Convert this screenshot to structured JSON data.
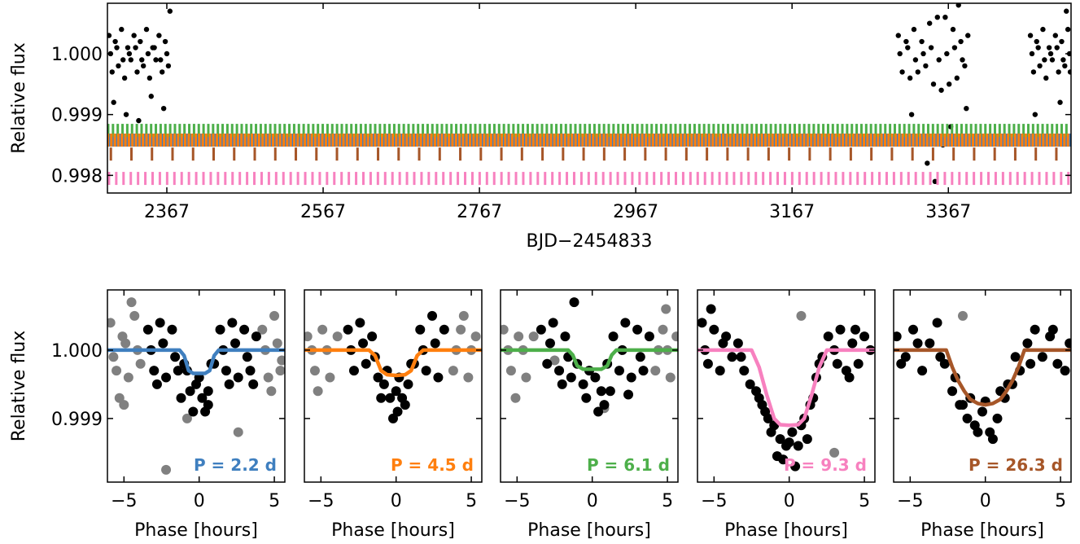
{
  "chart_data": [
    {
      "type": "scatter",
      "xlabel": "BJD−2454833",
      "ylabel": "Relative flux",
      "color": "#000000",
      "xlim": [
        2291,
        3524
      ],
      "ylim": [
        0.99771,
        1.00083
      ],
      "xticks": [
        2367,
        2567,
        2767,
        2967,
        3167,
        3367
      ],
      "yticks": [
        {
          "value": 1,
          "label": "1.000"
        },
        {
          "value": 0.999,
          "label": "0.999"
        },
        {
          "value": 0.998,
          "label": "0.998"
        }
      ],
      "x": [
        2293,
        2297,
        2301,
        2305,
        2309,
        2313,
        2317,
        2321,
        2325,
        2329,
        2333,
        2337,
        2341,
        2345,
        2349,
        2353,
        2357,
        2361,
        2365,
        2369,
        2295,
        2303,
        2311,
        2319,
        2327,
        2335,
        2343,
        2351,
        2359,
        2367,
        2299,
        2315,
        2331,
        2347,
        2363,
        2371,
        3303,
        3308,
        3313,
        3318,
        3323,
        3328,
        3333,
        3338,
        3343,
        3348,
        3353,
        3358,
        3363,
        3368,
        3373,
        3378,
        3383,
        3388,
        3392,
        3305,
        3315,
        3325,
        3335,
        3345,
        3355,
        3365,
        3375,
        3385,
        3310,
        3320,
        3340,
        3350,
        3360,
        3370,
        3380,
        3390,
        3472,
        3476,
        3480,
        3484,
        3488,
        3492,
        3496,
        3500,
        3504,
        3508,
        3512,
        3516,
        3520,
        3523,
        3474,
        3482,
        3490,
        3498,
        3506,
        3514,
        3522,
        3478,
        3494,
        3510,
        3518
      ],
      "values": [
        1.0003,
        0.9997,
        1.0002,
        0.9998,
        1.0004,
        0.9996,
        1.0001,
        0.9999,
        1.0003,
        0.9997,
        1.0002,
        0.9998,
        1.0004,
        0.9996,
        1.0001,
        0.9999,
        1.0003,
        0.9997,
        1.0002,
        0.9998,
        1.0,
        1.0001,
        0.9999,
        1.0,
        1.0001,
        0.9999,
        1.0,
        1.0001,
        0.9999,
        1.0,
        0.9992,
        0.999,
        0.9989,
        0.9993,
        0.9991,
        1.0007,
        1.0003,
        0.9997,
        1.0002,
        0.9996,
        1.0004,
        0.9997,
        1.0002,
        0.9998,
        1.0005,
        0.9995,
        1.0006,
        0.9994,
        1.0006,
        0.9995,
        1.0004,
        0.9996,
        1.0002,
        0.9998,
        1.0003,
        1.0,
        1.0001,
        0.9999,
        1.0,
        1.0001,
        0.9999,
        1.0,
        1.0001,
        0.9999,
        0.9986,
        0.999,
        0.9982,
        0.9979,
        0.9985,
        0.9988,
        1.0008,
        0.9991,
        1.0003,
        0.9997,
        1.0002,
        0.9998,
        1.0004,
        0.9996,
        1.0001,
        0.9999,
        1.0003,
        0.9997,
        1.0002,
        0.9998,
        1.0004,
        0.9997,
        1.0,
        1.0001,
        0.9999,
        1.0,
        1.0001,
        0.9999,
        1.0,
        0.999,
        0.9986,
        0.9992,
        1.0007
      ],
      "transits": [
        {
          "color": "#3f7fbf",
          "y": 0.99858,
          "t0": 2292,
          "period": 2.2
        },
        {
          "color": "#4daf4a",
          "y": 0.99874,
          "t0": 2292,
          "period": 6.1
        },
        {
          "color": "#ff7f0e",
          "y": 0.99858,
          "t0": 2291.5,
          "period": 4.5
        },
        {
          "color": "#a65628",
          "y": 0.99835,
          "t0": 2295.4,
          "period": 26.3
        },
        {
          "color": "#f781bf",
          "y": 0.99795,
          "t0": 2293,
          "period": 9.3
        }
      ]
    },
    {
      "type": "phase",
      "xlabel": "Phase [hours]",
      "ylabel": "Relative flux",
      "annotation": "P = 2.2 d",
      "xlim": [
        -6.1,
        5.7
      ],
      "ylim": [
        0.99807,
        1.00088
      ],
      "ytick_labels": true,
      "xticks": [
        {
          "value": -5,
          "label": "−5"
        },
        0,
        5
      ],
      "yticks": [
        {
          "value": 1,
          "label": "1.000"
        },
        {
          "value": 0.999,
          "label": "0.999"
        }
      ],
      "series": [
        {
          "color": "#808080",
          "x": [
            -5.9,
            -5.5,
            -5.1,
            -4.7,
            -4.3,
            -3.9,
            4.2,
            4.6,
            5.0,
            5.4,
            -5.7,
            -4.9,
            -4.1,
            4.4,
            5.2,
            -5.3,
            4.8,
            -4.5,
            -0.8,
            2.6,
            -2.2,
            -5.0,
            5.5
          ],
          "values": [
            1.0004,
            0.9997,
            1.0002,
            0.9996,
            1.0005,
            0.9998,
            1.0003,
            0.9996,
            1.0005,
            0.9997,
            0.9999,
            1.0001,
            1.0,
            1.0,
            1.0001,
            0.9993,
            0.9994,
            1.0007,
            0.999,
            0.9988,
            0.99825,
            0.9992,
            0.99985
          ]
        },
        {
          "color": "#000000",
          "x": [
            -3.4,
            -3.0,
            -2.6,
            -2.2,
            -1.8,
            -1.4,
            -1.0,
            -0.6,
            -0.2,
            0.2,
            0.6,
            1.0,
            1.4,
            1.8,
            2.2,
            2.6,
            3.0,
            3.4,
            3.8,
            -3.2,
            -2.4,
            -1.6,
            -0.8,
            0.0,
            0.8,
            1.6,
            2.4,
            3.2,
            -2.8,
            -1.2,
            0.4,
            2.0,
            3.6,
            -0.4,
            0.6
          ],
          "values": [
            1.0003,
            0.9997,
            1.0004,
            0.9996,
            1.0003,
            0.9997,
            0.9998,
            0.9994,
            0.9995,
            0.9993,
            0.9994,
            0.9998,
            1.0003,
            0.9997,
            1.0004,
            0.9996,
            1.0003,
            0.9997,
            1.0002,
            1.0,
            1.0001,
            0.9999,
            0.9997,
            0.9996,
            0.9998,
            1.0,
            1.0001,
            0.9999,
            0.9995,
            0.9993,
            0.9991,
            0.9995,
            0.9995,
            0.9991,
            0.9992
          ]
        }
      ],
      "model": {
        "color": "#3f7fbf",
        "x": [
          -6.1,
          -1.3,
          -1.0,
          -0.7,
          -0.4,
          0,
          0.4,
          0.7,
          1.0,
          1.3,
          5.7
        ],
        "values": [
          1,
          1,
          0.99992,
          0.9997,
          0.99966,
          0.99966,
          0.99966,
          0.9997,
          0.99992,
          1,
          1
        ]
      }
    },
    {
      "type": "phase",
      "xlabel": "Phase [hours]",
      "annotation": "P = 4.5 d",
      "xlim": [
        -6.1,
        5.7
      ],
      "ylim": [
        0.99807,
        1.00088
      ],
      "ytick_labels": false,
      "xticks": [
        {
          "value": -5,
          "label": "−5"
        },
        0,
        5
      ],
      "yticks": [
        1,
        0.999
      ],
      "series": [
        {
          "color": "#808080",
          "x": [
            -5.9,
            -5.4,
            -4.9,
            -4.4,
            -3.9,
            3.8,
            4.3,
            4.8,
            5.3,
            -5.6,
            -4.6,
            4.0,
            5.0,
            -5.2,
            4.5
          ],
          "values": [
            1.0002,
            0.9997,
            1.0003,
            0.9996,
            1.0002,
            0.9997,
            1.0003,
            0.9996,
            1.0002,
            1.0,
            1.0,
            1.0,
            1.0,
            0.9994,
            1.0005
          ]
        },
        {
          "color": "#000000",
          "x": [
            -3.2,
            -2.8,
            -2.4,
            -2.0,
            -1.6,
            -1.2,
            -0.8,
            -0.4,
            0.0,
            0.4,
            0.8,
            1.2,
            1.6,
            2.0,
            2.4,
            2.8,
            3.2,
            -3.0,
            -2.2,
            -1.4,
            -0.6,
            0.2,
            1.0,
            1.8,
            2.6,
            -0.2,
            0.1,
            0.6,
            -1.0
          ],
          "values": [
            1.0003,
            0.9997,
            1.0004,
            0.9998,
            1.0002,
            0.9996,
            0.9995,
            0.9993,
            0.9994,
            0.9993,
            0.9995,
            0.9998,
            1.0003,
            0.9997,
            1.0005,
            0.9996,
            1.0003,
            1.0,
            1.0001,
            0.9999,
            0.9997,
            0.9996,
            0.9998,
            1.0,
            1.0001,
            0.999,
            0.9991,
            0.9992,
            0.9993
          ]
        }
      ],
      "model": {
        "color": "#ff7f0e",
        "x": [
          -6.1,
          -1.8,
          -1.4,
          -1.0,
          -0.6,
          0,
          0.6,
          1.0,
          1.4,
          1.8,
          5.7
        ],
        "values": [
          1,
          1,
          0.99992,
          0.9997,
          0.99964,
          0.99963,
          0.99964,
          0.9997,
          0.99992,
          1,
          1
        ]
      }
    },
    {
      "type": "phase",
      "xlabel": "Phase [hours]",
      "annotation": "P = 6.1 d",
      "xlim": [
        -6.1,
        5.7
      ],
      "ylim": [
        0.99807,
        1.00088
      ],
      "ytick_labels": false,
      "xticks": [
        {
          "value": -5,
          "label": "−5"
        },
        0,
        5
      ],
      "yticks": [
        1,
        0.999
      ],
      "series": [
        {
          "color": "#808080",
          "x": [
            -5.9,
            -5.4,
            -4.9,
            -4.4,
            -3.9,
            4.2,
            4.7,
            5.2,
            5.6,
            -5.6,
            -4.6,
            4.4,
            5.0,
            -5.1,
            4.9,
            0.8,
            -2.5
          ],
          "values": [
            1.0003,
            0.9997,
            1.0002,
            0.9996,
            1.0002,
            0.9997,
            1.0003,
            0.9996,
            1.0002,
            1.0,
            1.0,
            1.0,
            1.0,
            0.9993,
            1.0006,
            0.99915,
            0.99985
          ]
        },
        {
          "color": "#000000",
          "x": [
            -3.4,
            -3.0,
            -2.6,
            -2.2,
            -1.8,
            -1.4,
            -1.0,
            -0.6,
            -0.2,
            0.2,
            0.6,
            1.0,
            1.4,
            1.8,
            2.2,
            2.6,
            3.0,
            3.4,
            3.8,
            -2.8,
            -1.6,
            -0.4,
            0.8,
            2.0,
            3.2,
            -1.2,
            0.4,
            1.2,
            -2.0,
            2.4
          ],
          "values": [
            1.0003,
            0.9998,
            1.0004,
            0.9997,
            1.0002,
            0.9996,
            0.9998,
            0.9995,
            0.9997,
            0.9996,
            0.9994,
            0.9998,
            1.0002,
            0.9997,
            1.0004,
            0.9996,
            1.0003,
            0.9997,
            1.0002,
            1.0001,
            0.9999,
            0.9993,
            0.9992,
            1.0,
            0.9999,
            1.0007,
            0.9991,
            0.9994,
            0.9995,
            0.99935
          ]
        }
      ],
      "model": {
        "color": "#4daf4a",
        "x": [
          -6.1,
          -1.6,
          -1.3,
          -1.0,
          -0.6,
          0,
          0.6,
          1.0,
          1.3,
          1.6,
          5.7
        ],
        "values": [
          1,
          1,
          0.99993,
          0.99977,
          0.99972,
          0.99972,
          0.99972,
          0.99977,
          0.99993,
          1,
          1
        ]
      }
    },
    {
      "type": "phase",
      "xlabel": "Phase [hours]",
      "annotation": "P = 9.3 d",
      "xlim": [
        -6.1,
        5.7
      ],
      "ylim": [
        0.99807,
        1.00088
      ],
      "ytick_labels": false,
      "xticks": [
        {
          "value": -5,
          "label": "−5"
        },
        0,
        5
      ],
      "yticks": [
        1,
        0.999
      ],
      "series": [
        {
          "color": "#808080",
          "x": [
            0.8,
            3.0
          ],
          "values": [
            1.0005,
            0.9985
          ]
        },
        {
          "color": "#000000",
          "x": [
            -5.8,
            -5.4,
            -5.0,
            -4.6,
            -4.2,
            -3.8,
            -3.4,
            -3.0,
            -2.6,
            -2.2,
            -1.8,
            -1.4,
            -1.0,
            -0.6,
            -0.2,
            0.2,
            0.6,
            1.0,
            1.4,
            1.8,
            2.2,
            2.6,
            3.0,
            3.4,
            3.8,
            4.2,
            4.6,
            5.0,
            5.4,
            -5.6,
            -4.4,
            -3.2,
            -2.0,
            -1.2,
            -0.4,
            0.4,
            1.2,
            2.0,
            3.2,
            4.4,
            -0.8,
            0.0,
            0.8,
            -1.6,
            1.6,
            -5.2,
            4.0
          ],
          "values": [
            1.0004,
            0.9998,
            1.0003,
            0.9997,
            1.0002,
            0.9999,
            1.0001,
            0.9997,
            0.9995,
            0.9994,
            0.9992,
            0.999,
            0.9989,
            0.9987,
            0.9986,
            0.9988,
            0.9986,
            0.999,
            0.9992,
            0.9996,
            0.9999,
            1.0002,
            1.0,
            1.0003,
            0.9997,
            1.0001,
            0.9998,
            1.0002,
            1.0,
            1.0,
            1.0001,
            0.9999,
            0.9993,
            0.9988,
            0.9984,
            0.9983,
            0.9987,
            0.9998,
            0.9998,
            1.0003,
            0.99845,
            0.99865,
            0.9989,
            0.9991,
            0.9993,
            1.0006,
            0.9996
          ]
        }
      ],
      "model": {
        "color": "#f781bf",
        "x": [
          -6.1,
          -2.5,
          -2.0,
          -1.5,
          -1.0,
          -0.6,
          0,
          0.6,
          1.0,
          1.5,
          2.0,
          2.5,
          5.7
        ],
        "values": [
          1,
          1,
          0.99975,
          0.99935,
          0.999,
          0.99891,
          0.9989,
          0.99891,
          0.999,
          0.99935,
          0.99975,
          1,
          1
        ]
      }
    },
    {
      "type": "phase",
      "xlabel": "Phase [hours]",
      "annotation": "P = 26.3 d",
      "xlim": [
        -6.1,
        5.7
      ],
      "ylim": [
        0.99807,
        1.00088
      ],
      "ytick_labels": false,
      "xticks": [
        {
          "value": -5,
          "label": "−5"
        },
        0,
        5
      ],
      "yticks": [
        1,
        0.999
      ],
      "series": [
        {
          "color": "#808080",
          "x": [
            -1.5
          ],
          "values": [
            1.0005
          ]
        },
        {
          "color": "#000000",
          "x": [
            -5.9,
            -5.3,
            -4.8,
            -4.2,
            -3.7,
            -3.2,
            -2.7,
            -2.2,
            -1.7,
            -1.2,
            -0.7,
            -0.2,
            0.3,
            0.8,
            1.3,
            1.8,
            2.3,
            2.8,
            3.3,
            3.8,
            4.3,
            4.8,
            5.3,
            5.6,
            -5.6,
            -4.5,
            -3.0,
            -2.0,
            -1.0,
            0.0,
            1.0,
            2.0,
            3.0,
            4.5,
            -1.5,
            0.5,
            1.5,
            -0.5
          ],
          "values": [
            1.0002,
            0.9999,
            1.0003,
            0.9997,
            1.0001,
            1.0004,
            0.9998,
            0.9994,
            0.9992,
            0.999,
            0.9989,
            0.9991,
            0.9988,
            0.999,
            0.9993,
            0.9995,
            0.9997,
            1.0001,
            1.0003,
            0.9999,
            1.0002,
            0.9998,
            0.9997,
            1.0001,
            0.9998,
            1.0001,
            0.9999,
            0.9996,
            0.9993,
            0.99925,
            0.9994,
            0.9999,
            0.9998,
            1.0003,
            0.9992,
            0.9987,
            0.9995,
            0.9988
          ]
        }
      ],
      "model": {
        "color": "#a65628",
        "x": [
          -6.1,
          -2.6,
          -2.2,
          -1.8,
          -1.4,
          -1.0,
          -0.5,
          0,
          0.5,
          1.0,
          1.4,
          1.8,
          2.2,
          2.6,
          5.7
        ],
        "values": [
          1,
          1,
          0.99975,
          0.99955,
          0.9994,
          0.99928,
          0.99922,
          0.9992,
          0.99922,
          0.99928,
          0.9994,
          0.99955,
          0.99975,
          1,
          1
        ]
      }
    }
  ]
}
